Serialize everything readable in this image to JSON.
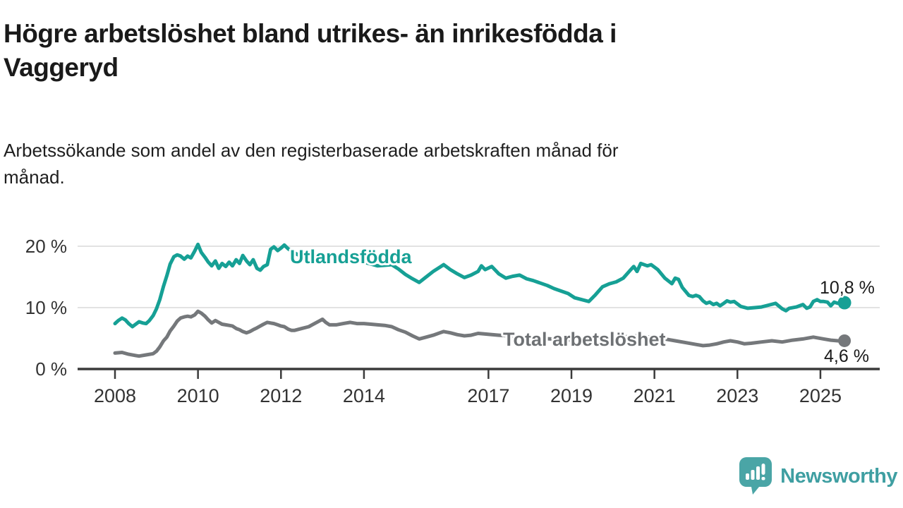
{
  "header": {
    "title_lines": [
      "Högre arbetslöshet bland utrikes- än inrikesfödda i",
      "Vaggeryd"
    ],
    "subtitle_lines": [
      "Arbetssökande som andel av den registerbaserade arbetskraften månad för",
      "månad."
    ]
  },
  "footer": {
    "brand": "Newsworthy",
    "logo_icon": "speech-bubble-bar-chart-exclamation-icon"
  },
  "colors": {
    "series_teal": "#16a095",
    "series_gray": "#75787b",
    "label_gray": "#6e7174",
    "annotation_text": "#1a1a1a",
    "axis": "#3b3b3b",
    "tick_text": "#333333",
    "gridline": "#d9d9d9",
    "logo_teal": "#4aa5a6",
    "logo_text_teal": "#3f9fa2"
  },
  "chart_data": {
    "type": "line",
    "title": "",
    "xlabel": "",
    "ylabel": "",
    "x_unit": "decimal_year_monthly_samples",
    "y_unit": "percent",
    "xlim": [
      2007.1,
      2026.4
    ],
    "ylim": [
      0,
      22
    ],
    "grid": "horizontal",
    "legend": "inline-labels-on-lines",
    "yticks": [
      {
        "value": 0,
        "label": "0 %"
      },
      {
        "value": 10,
        "label": "10 %"
      },
      {
        "value": 20,
        "label": "20 %"
      }
    ],
    "xticks": [
      {
        "value": 2008,
        "label": "2008"
      },
      {
        "value": 2010,
        "label": "2010"
      },
      {
        "value": 2012,
        "label": "2012"
      },
      {
        "value": 2014,
        "label": "2014"
      },
      {
        "value": 2017,
        "label": "2017"
      },
      {
        "value": 2019,
        "label": "2019"
      },
      {
        "value": 2021,
        "label": "2021"
      },
      {
        "value": 2023,
        "label": "2023"
      },
      {
        "value": 2025,
        "label": "2025"
      }
    ],
    "series": [
      {
        "name": "Utlandsfödda",
        "color": "#16a095",
        "end_label": "10,8 %",
        "last_value": 10.8,
        "points": [
          [
            2008.0,
            7.4
          ],
          [
            2008.08,
            7.9
          ],
          [
            2008.17,
            8.3
          ],
          [
            2008.25,
            8.0
          ],
          [
            2008.33,
            7.4
          ],
          [
            2008.42,
            6.9
          ],
          [
            2008.5,
            7.3
          ],
          [
            2008.58,
            7.7
          ],
          [
            2008.67,
            7.5
          ],
          [
            2008.75,
            7.4
          ],
          [
            2008.83,
            7.9
          ],
          [
            2008.92,
            8.7
          ],
          [
            2009.0,
            9.8
          ],
          [
            2009.08,
            11.3
          ],
          [
            2009.17,
            13.5
          ],
          [
            2009.25,
            15.2
          ],
          [
            2009.33,
            17.1
          ],
          [
            2009.42,
            18.3
          ],
          [
            2009.5,
            18.6
          ],
          [
            2009.58,
            18.4
          ],
          [
            2009.67,
            17.9
          ],
          [
            2009.75,
            18.4
          ],
          [
            2009.83,
            18.1
          ],
          [
            2009.92,
            19.2
          ],
          [
            2010.0,
            20.3
          ],
          [
            2010.08,
            19.0
          ],
          [
            2010.17,
            18.2
          ],
          [
            2010.25,
            17.4
          ],
          [
            2010.33,
            16.8
          ],
          [
            2010.42,
            17.6
          ],
          [
            2010.5,
            16.4
          ],
          [
            2010.58,
            17.2
          ],
          [
            2010.67,
            16.7
          ],
          [
            2010.75,
            17.4
          ],
          [
            2010.83,
            16.8
          ],
          [
            2010.92,
            17.8
          ],
          [
            2011.0,
            17.2
          ],
          [
            2011.08,
            18.5
          ],
          [
            2011.17,
            17.6
          ],
          [
            2011.25,
            17.0
          ],
          [
            2011.33,
            17.8
          ],
          [
            2011.42,
            16.4
          ],
          [
            2011.5,
            16.1
          ],
          [
            2011.58,
            16.7
          ],
          [
            2011.67,
            17.0
          ],
          [
            2011.75,
            19.5
          ],
          [
            2011.83,
            19.9
          ],
          [
            2011.92,
            19.3
          ],
          [
            2012.0,
            19.7
          ],
          [
            2012.08,
            20.2
          ],
          [
            2012.17,
            19.6
          ],
          [
            2012.33,
            18.9
          ],
          [
            2012.5,
            18.3
          ],
          [
            2012.67,
            18.8
          ],
          [
            2012.83,
            18.4
          ],
          [
            2013.0,
            18.6
          ],
          [
            2013.17,
            18.0
          ],
          [
            2013.33,
            18.3
          ],
          [
            2013.5,
            17.8
          ],
          [
            2013.67,
            17.4
          ],
          [
            2013.83,
            17.6
          ],
          [
            2014.0,
            17.4
          ],
          [
            2014.17,
            17.1
          ],
          [
            2014.33,
            16.8
          ],
          [
            2014.5,
            16.9
          ],
          [
            2014.67,
            17.0
          ],
          [
            2014.83,
            16.3
          ],
          [
            2015.0,
            15.4
          ],
          [
            2015.17,
            14.7
          ],
          [
            2015.33,
            14.1
          ],
          [
            2015.5,
            15.0
          ],
          [
            2015.67,
            15.9
          ],
          [
            2015.83,
            16.6
          ],
          [
            2015.92,
            17.0
          ],
          [
            2016.08,
            16.2
          ],
          [
            2016.25,
            15.5
          ],
          [
            2016.42,
            14.9
          ],
          [
            2016.58,
            15.3
          ],
          [
            2016.75,
            15.9
          ],
          [
            2016.83,
            16.8
          ],
          [
            2016.92,
            16.2
          ],
          [
            2017.08,
            16.7
          ],
          [
            2017.25,
            15.5
          ],
          [
            2017.42,
            14.8
          ],
          [
            2017.58,
            15.1
          ],
          [
            2017.75,
            15.3
          ],
          [
            2017.92,
            14.7
          ],
          [
            2018.08,
            14.4
          ],
          [
            2018.25,
            14.0
          ],
          [
            2018.42,
            13.6
          ],
          [
            2018.58,
            13.1
          ],
          [
            2018.75,
            12.7
          ],
          [
            2018.92,
            12.3
          ],
          [
            2019.08,
            11.6
          ],
          [
            2019.25,
            11.3
          ],
          [
            2019.42,
            11.0
          ],
          [
            2019.58,
            12.1
          ],
          [
            2019.75,
            13.4
          ],
          [
            2019.92,
            13.9
          ],
          [
            2020.08,
            14.2
          ],
          [
            2020.25,
            14.8
          ],
          [
            2020.42,
            16.1
          ],
          [
            2020.5,
            16.7
          ],
          [
            2020.58,
            15.9
          ],
          [
            2020.67,
            17.2
          ],
          [
            2020.83,
            16.8
          ],
          [
            2020.92,
            17.0
          ],
          [
            2021.0,
            16.6
          ],
          [
            2021.08,
            16.2
          ],
          [
            2021.25,
            14.8
          ],
          [
            2021.42,
            13.9
          ],
          [
            2021.5,
            14.8
          ],
          [
            2021.58,
            14.6
          ],
          [
            2021.67,
            13.3
          ],
          [
            2021.83,
            12.0
          ],
          [
            2021.92,
            11.8
          ],
          [
            2022.0,
            12.0
          ],
          [
            2022.08,
            11.8
          ],
          [
            2022.17,
            11.1
          ],
          [
            2022.25,
            10.7
          ],
          [
            2022.33,
            10.9
          ],
          [
            2022.42,
            10.5
          ],
          [
            2022.5,
            10.7
          ],
          [
            2022.58,
            10.3
          ],
          [
            2022.67,
            10.7
          ],
          [
            2022.75,
            11.1
          ],
          [
            2022.83,
            10.9
          ],
          [
            2022.92,
            11.0
          ],
          [
            2023.08,
            10.2
          ],
          [
            2023.25,
            9.9
          ],
          [
            2023.42,
            10.0
          ],
          [
            2023.58,
            10.1
          ],
          [
            2023.75,
            10.4
          ],
          [
            2023.92,
            10.7
          ],
          [
            2024.08,
            9.8
          ],
          [
            2024.17,
            9.5
          ],
          [
            2024.25,
            9.9
          ],
          [
            2024.42,
            10.1
          ],
          [
            2024.5,
            10.3
          ],
          [
            2024.58,
            10.5
          ],
          [
            2024.67,
            9.9
          ],
          [
            2024.75,
            10.1
          ],
          [
            2024.83,
            11.0
          ],
          [
            2024.92,
            11.3
          ],
          [
            2025.0,
            11.0
          ],
          [
            2025.08,
            11.0
          ],
          [
            2025.17,
            10.9
          ],
          [
            2025.25,
            10.3
          ],
          [
            2025.33,
            10.9
          ],
          [
            2025.42,
            10.7
          ],
          [
            2025.5,
            10.8
          ],
          [
            2025.58,
            10.8
          ]
        ]
      },
      {
        "name": "Total arbetslöshet",
        "color": "#75787b",
        "end_label": "4,6 %",
        "last_value": 4.6,
        "points": [
          [
            2008.0,
            2.6
          ],
          [
            2008.17,
            2.7
          ],
          [
            2008.33,
            2.4
          ],
          [
            2008.5,
            2.2
          ],
          [
            2008.58,
            2.1
          ],
          [
            2008.75,
            2.3
          ],
          [
            2008.92,
            2.5
          ],
          [
            2009.0,
            2.9
          ],
          [
            2009.08,
            3.6
          ],
          [
            2009.17,
            4.6
          ],
          [
            2009.25,
            5.2
          ],
          [
            2009.33,
            6.2
          ],
          [
            2009.42,
            7.0
          ],
          [
            2009.5,
            7.8
          ],
          [
            2009.58,
            8.3
          ],
          [
            2009.67,
            8.5
          ],
          [
            2009.75,
            8.6
          ],
          [
            2009.83,
            8.5
          ],
          [
            2009.92,
            8.8
          ],
          [
            2010.0,
            9.4
          ],
          [
            2010.08,
            9.1
          ],
          [
            2010.17,
            8.6
          ],
          [
            2010.25,
            8.0
          ],
          [
            2010.33,
            7.5
          ],
          [
            2010.42,
            7.9
          ],
          [
            2010.5,
            7.6
          ],
          [
            2010.58,
            7.3
          ],
          [
            2010.67,
            7.2
          ],
          [
            2010.75,
            7.1
          ],
          [
            2010.83,
            7.0
          ],
          [
            2010.92,
            6.6
          ],
          [
            2011.0,
            6.4
          ],
          [
            2011.08,
            6.1
          ],
          [
            2011.17,
            5.9
          ],
          [
            2011.25,
            6.1
          ],
          [
            2011.33,
            6.4
          ],
          [
            2011.42,
            6.7
          ],
          [
            2011.5,
            7.0
          ],
          [
            2011.58,
            7.3
          ],
          [
            2011.67,
            7.6
          ],
          [
            2011.75,
            7.5
          ],
          [
            2011.83,
            7.4
          ],
          [
            2011.92,
            7.2
          ],
          [
            2012.0,
            7.0
          ],
          [
            2012.08,
            6.9
          ],
          [
            2012.17,
            6.5
          ],
          [
            2012.25,
            6.3
          ],
          [
            2012.33,
            6.3
          ],
          [
            2012.5,
            6.6
          ],
          [
            2012.67,
            6.9
          ],
          [
            2012.75,
            7.2
          ],
          [
            2012.92,
            7.8
          ],
          [
            2013.0,
            8.1
          ],
          [
            2013.08,
            7.6
          ],
          [
            2013.17,
            7.2
          ],
          [
            2013.33,
            7.2
          ],
          [
            2013.5,
            7.4
          ],
          [
            2013.67,
            7.6
          ],
          [
            2013.83,
            7.4
          ],
          [
            2014.0,
            7.4
          ],
          [
            2014.17,
            7.3
          ],
          [
            2014.33,
            7.2
          ],
          [
            2014.5,
            7.1
          ],
          [
            2014.67,
            6.9
          ],
          [
            2014.83,
            6.4
          ],
          [
            2015.0,
            6.0
          ],
          [
            2015.17,
            5.4
          ],
          [
            2015.33,
            4.9
          ],
          [
            2015.5,
            5.2
          ],
          [
            2015.67,
            5.5
          ],
          [
            2015.83,
            5.9
          ],
          [
            2015.92,
            6.1
          ],
          [
            2016.08,
            5.9
          ],
          [
            2016.25,
            5.6
          ],
          [
            2016.42,
            5.4
          ],
          [
            2016.58,
            5.5
          ],
          [
            2016.75,
            5.8
          ],
          [
            2016.92,
            5.7
          ],
          [
            2017.08,
            5.6
          ],
          [
            2017.25,
            5.5
          ],
          [
            2017.5,
            5.4
          ],
          [
            2017.75,
            5.3
          ],
          [
            2018.0,
            5.2
          ],
          [
            2018.25,
            5.0
          ],
          [
            2018.5,
            4.9
          ],
          [
            2018.75,
            4.8
          ],
          [
            2019.0,
            4.7
          ],
          [
            2019.25,
            4.6
          ],
          [
            2019.5,
            4.5
          ],
          [
            2019.75,
            4.6
          ],
          [
            2020.0,
            4.8
          ],
          [
            2020.25,
            5.2
          ],
          [
            2020.5,
            5.4
          ],
          [
            2020.75,
            5.3
          ],
          [
            2021.0,
            5.1
          ],
          [
            2021.25,
            4.9
          ],
          [
            2021.5,
            4.6
          ],
          [
            2021.75,
            4.3
          ],
          [
            2022.0,
            4.0
          ],
          [
            2022.17,
            3.8
          ],
          [
            2022.33,
            3.9
          ],
          [
            2022.5,
            4.1
          ],
          [
            2022.67,
            4.4
          ],
          [
            2022.83,
            4.6
          ],
          [
            2023.0,
            4.4
          ],
          [
            2023.17,
            4.1
          ],
          [
            2023.33,
            4.2
          ],
          [
            2023.58,
            4.4
          ],
          [
            2023.83,
            4.6
          ],
          [
            2024.08,
            4.4
          ],
          [
            2024.33,
            4.7
          ],
          [
            2024.58,
            4.9
          ],
          [
            2024.83,
            5.2
          ],
          [
            2025.08,
            4.9
          ],
          [
            2025.25,
            4.7
          ],
          [
            2025.42,
            4.6
          ],
          [
            2025.58,
            4.6
          ]
        ]
      }
    ]
  }
}
